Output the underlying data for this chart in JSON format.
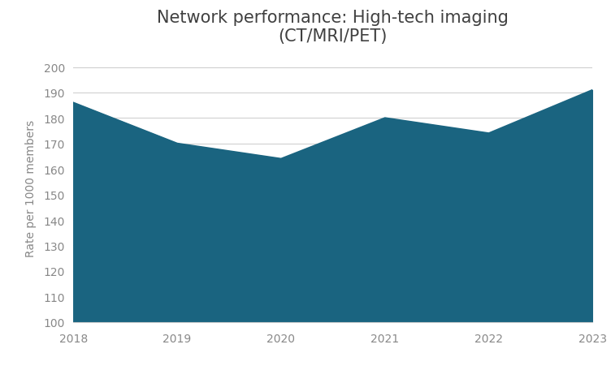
{
  "title": "Network performance: High-tech imaging\n(CT/MRI/PET)",
  "xlabel": "",
  "ylabel": "Rate per 1000 members",
  "x": [
    2018,
    2019,
    2020,
    2021,
    2022,
    2023
  ],
  "y": [
    186,
    170,
    164,
    180,
    174,
    191
  ],
  "fill_color": "#1a6480",
  "line_color": "#1a6480",
  "background_color": "#ffffff",
  "grid_color": "#d0d0d0",
  "ylim": [
    100,
    205
  ],
  "yticks": [
    100,
    110,
    120,
    130,
    140,
    150,
    160,
    170,
    180,
    190,
    200
  ],
  "xticks": [
    2018,
    2019,
    2020,
    2021,
    2022,
    2023
  ],
  "title_fontsize": 15,
  "label_fontsize": 10,
  "tick_fontsize": 10,
  "tick_color": "#888888",
  "title_color": "#404040"
}
